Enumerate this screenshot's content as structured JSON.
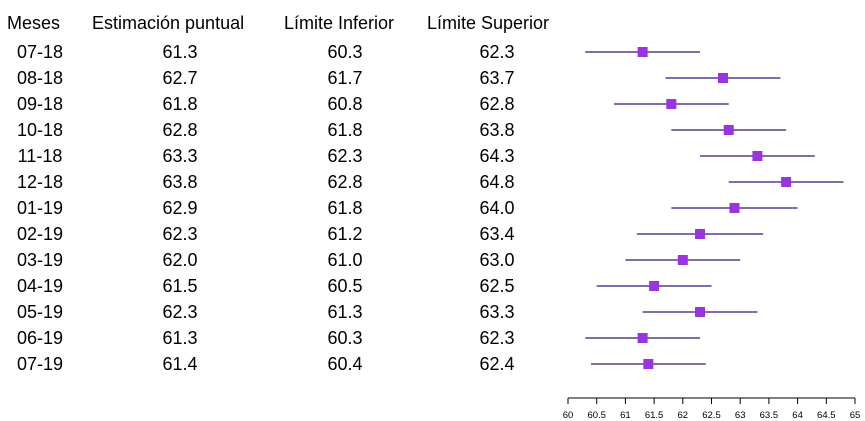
{
  "chart_data": {
    "type": "forest",
    "headers": [
      "Meses",
      "Estimación puntual",
      "Límite Inferior",
      "Límite Superior"
    ],
    "rows": [
      {
        "mes": "07-18",
        "est": "61.3",
        "inf": "60.3",
        "sup": "62.3"
      },
      {
        "mes": "08-18",
        "est": "62.7",
        "inf": "61.7",
        "sup": "63.7"
      },
      {
        "mes": "09-18",
        "est": "61.8",
        "inf": "60.8",
        "sup": "62.8"
      },
      {
        "mes": "10-18",
        "est": "62.8",
        "inf": "61.8",
        "sup": "63.8"
      },
      {
        "mes": "11-18",
        "est": "63.3",
        "inf": "62.3",
        "sup": "64.3"
      },
      {
        "mes": "12-18",
        "est": "63.8",
        "inf": "62.8",
        "sup": "64.8"
      },
      {
        "mes": "01-19",
        "est": "62.9",
        "inf": "61.8",
        "sup": "64.0"
      },
      {
        "mes": "02-19",
        "est": "62.3",
        "inf": "61.2",
        "sup": "63.4"
      },
      {
        "mes": "03-19",
        "est": "62.0",
        "inf": "61.0",
        "sup": "63.0"
      },
      {
        "mes": "04-19",
        "est": "61.5",
        "inf": "60.5",
        "sup": "62.5"
      },
      {
        "mes": "05-19",
        "est": "62.3",
        "inf": "61.3",
        "sup": "63.3"
      },
      {
        "mes": "06-19",
        "est": "61.3",
        "inf": "60.3",
        "sup": "62.3"
      },
      {
        "mes": "07-19",
        "est": "61.4",
        "inf": "60.4",
        "sup": "62.4"
      }
    ],
    "x_ticks": [
      "60",
      "60.5",
      "61",
      "61.5",
      "62",
      "62.5",
      "63",
      "63.5",
      "64",
      "64.5",
      "65"
    ],
    "xlim": [
      60,
      65
    ],
    "colors": {
      "marker": "#9a33e0",
      "line": "#2a1a7a"
    }
  }
}
